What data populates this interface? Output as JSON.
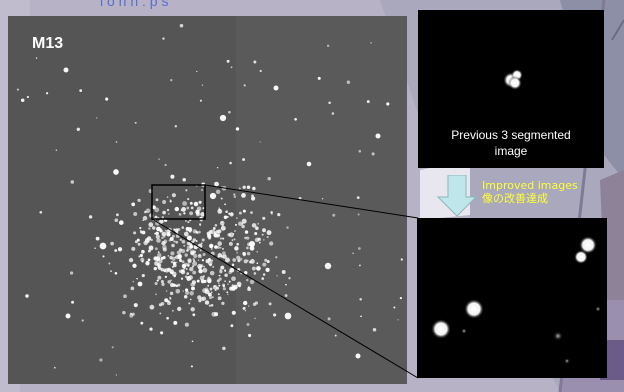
{
  "main_image": {
    "label": "M13"
  },
  "header": {
    "partial_text": "l  o  n          n                    :  p  s"
  },
  "segmented_panel": {
    "caption_line1": "Previous 3 segmented",
    "caption_line2": "image"
  },
  "transition": {
    "label_en": "Improved images",
    "label_ja": "像の改善達成",
    "arrow_color": "#bfe6ea"
  },
  "colors": {
    "label_yellow": "#ffff33",
    "header_blue": "#3a57d8"
  }
}
